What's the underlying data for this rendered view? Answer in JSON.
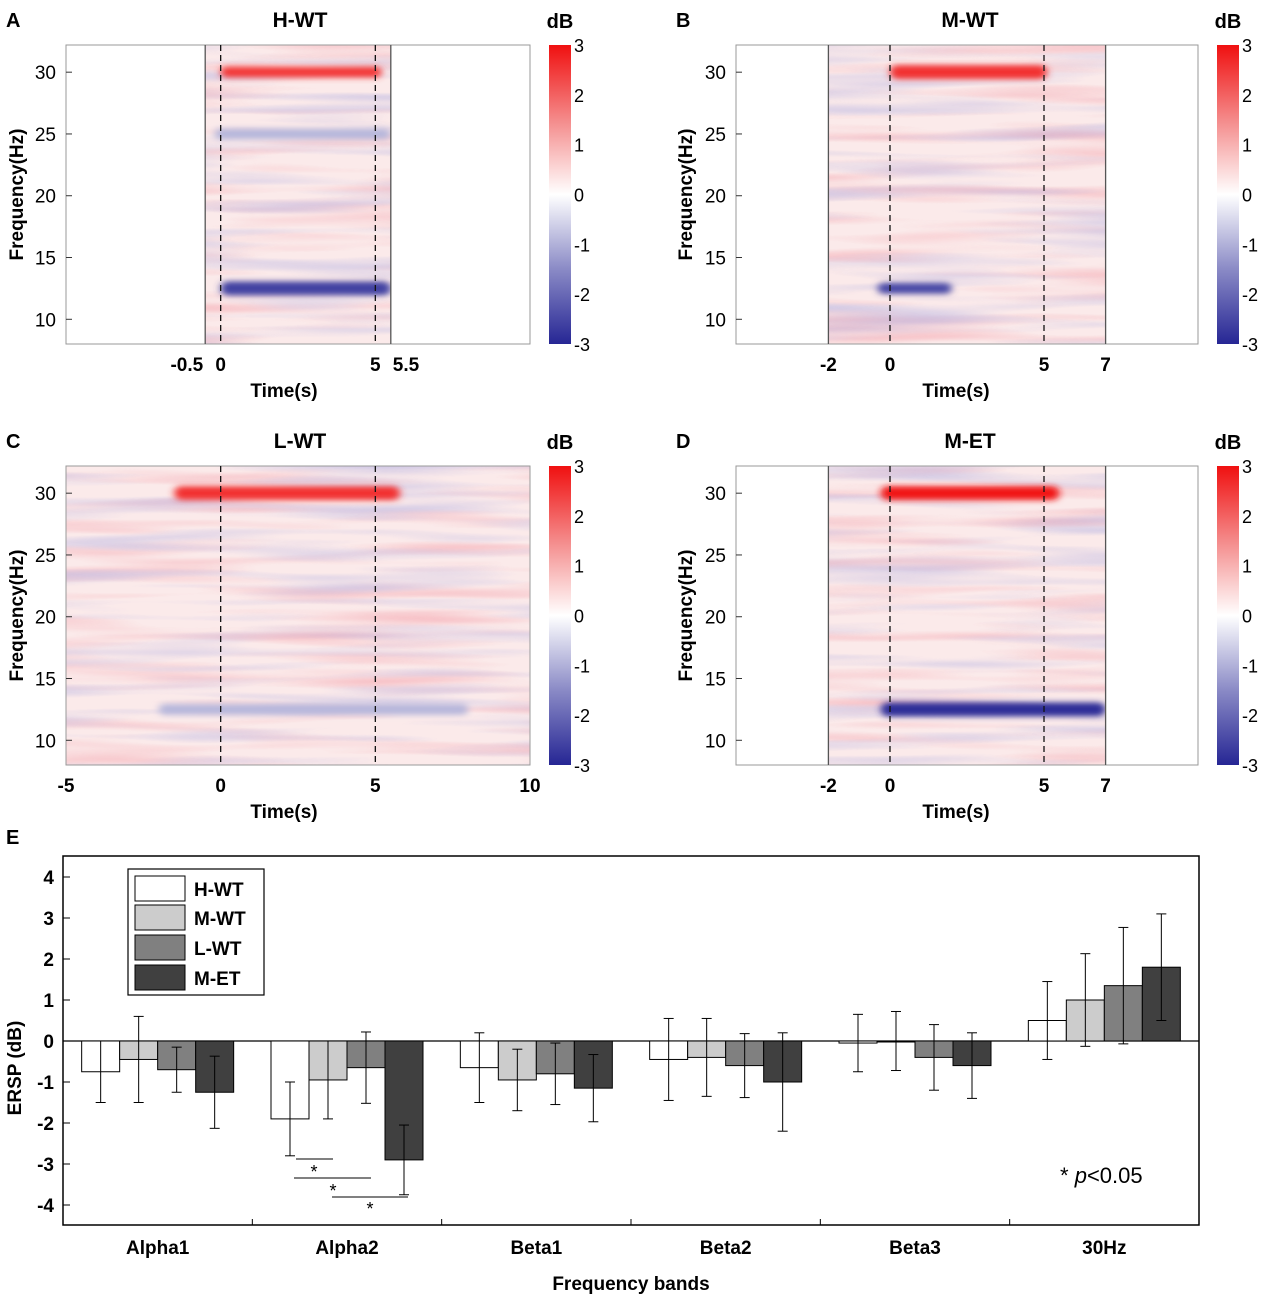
{
  "colorbar": {
    "unit": "dB",
    "ticks": [
      "3",
      "2",
      "1",
      "0",
      "-1",
      "-2",
      "-3"
    ]
  },
  "panels": [
    {
      "letter": "A",
      "title": "H-WT",
      "ylabel": "Frequency(Hz)",
      "xlabel": "Time(s)",
      "yticks": [
        "30",
        "25",
        "20",
        "15",
        "10"
      ],
      "xlim": [
        -5,
        10
      ],
      "xticks": [
        "-0.5",
        "0",
        "5",
        "5.5"
      ],
      "xtick_values": [
        -0.5,
        0,
        5,
        5.5
      ],
      "window": [
        -0.5,
        5.5
      ],
      "stimulus": [
        0,
        5
      ],
      "bands": [
        {
          "freq": 30,
          "db": 2.5,
          "start": 0,
          "end": 5.2
        },
        {
          "freq": 12.5,
          "db": -2.6,
          "start": 0,
          "end": 5.5
        },
        {
          "freq": 25,
          "db": -1.0,
          "start": -0.2,
          "end": 5.5
        }
      ]
    },
    {
      "letter": "B",
      "title": "M-WT",
      "ylabel": "Frequency(Hz)",
      "xlabel": "Time(s)",
      "yticks": [
        "30",
        "25",
        "20",
        "15",
        "10"
      ],
      "xlim": [
        -5,
        10
      ],
      "xticks": [
        "-2",
        "0",
        "5",
        "7"
      ],
      "xtick_values": [
        -2,
        0,
        5,
        7
      ],
      "window": [
        -2,
        7
      ],
      "stimulus": [
        0,
        5
      ],
      "bands": [
        {
          "freq": 30,
          "db": 2.6,
          "start": 0,
          "end": 5.1
        },
        {
          "freq": 12.5,
          "db": -2.5,
          "start": -0.4,
          "end": 2.0
        }
      ]
    },
    {
      "letter": "C",
      "title": "L-WT",
      "ylabel": "Frequency(Hz)",
      "xlabel": "Time(s)",
      "yticks": [
        "30",
        "25",
        "20",
        "15",
        "10"
      ],
      "xlim": [
        -5,
        10
      ],
      "xticks": [
        "-5",
        "0",
        "5",
        "10"
      ],
      "xtick_values": [
        -5,
        0,
        5,
        10
      ],
      "window": [
        -5,
        10
      ],
      "stimulus": [
        0,
        5
      ],
      "bands": [
        {
          "freq": 30,
          "db": 2.6,
          "start": -1.5,
          "end": 5.8
        },
        {
          "freq": 12.5,
          "db": -1.0,
          "start": -2,
          "end": 8
        }
      ]
    },
    {
      "letter": "D",
      "title": "M-ET",
      "ylabel": "Frequency(Hz)",
      "xlabel": "Time(s)",
      "yticks": [
        "30",
        "25",
        "20",
        "15",
        "10"
      ],
      "xlim": [
        -5,
        10
      ],
      "xticks": [
        "-2",
        "0",
        "5",
        "7"
      ],
      "xtick_values": [
        -2,
        0,
        5,
        7
      ],
      "window": [
        -2,
        7
      ],
      "stimulus": [
        0,
        5
      ],
      "bands": [
        {
          "freq": 30,
          "db": 2.9,
          "start": -0.3,
          "end": 5.5
        },
        {
          "freq": 12.5,
          "db": -2.9,
          "start": -0.3,
          "end": 7
        }
      ]
    }
  ],
  "chart_data": {
    "type": "bar",
    "panel_letter": "E",
    "title": "",
    "xlabel": "Frequency bands",
    "ylabel": "ERSP (dB)",
    "ylim": [
      -4.5,
      4.5
    ],
    "yticks": [
      "4",
      "3",
      "2",
      "1",
      "0",
      "-1",
      "-2",
      "-3",
      "-4"
    ],
    "categories": [
      "Alpha1",
      "Alpha2",
      "Beta1",
      "Beta2",
      "Beta3",
      "30Hz"
    ],
    "series": [
      {
        "name": "H-WT",
        "color": "#ffffff",
        "values": [
          -0.75,
          -1.9,
          -0.65,
          -0.45,
          -0.05,
          0.5
        ],
        "errors": [
          0.75,
          0.9,
          0.85,
          1.0,
          0.7,
          0.95
        ]
      },
      {
        "name": "M-WT",
        "color": "#cccccc",
        "values": [
          -0.45,
          -0.95,
          -0.95,
          -0.4,
          0.0,
          1.0
        ],
        "errors": [
          1.05,
          0.95,
          0.75,
          0.95,
          0.72,
          1.13
        ]
      },
      {
        "name": "L-WT",
        "color": "#808080",
        "values": [
          -0.7,
          -0.65,
          -0.8,
          -0.6,
          -0.4,
          1.35
        ],
        "errors": [
          0.55,
          0.87,
          0.75,
          0.78,
          0.8,
          1.42
        ]
      },
      {
        "name": "M-ET",
        "color": "#404040",
        "values": [
          -1.25,
          -2.9,
          -1.15,
          -1.0,
          -0.6,
          1.8
        ],
        "errors": [
          0.88,
          0.85,
          0.82,
          1.2,
          0.8,
          1.3
        ]
      }
    ],
    "significance": {
      "marker": "*",
      "note_prefix": "* ",
      "note_p": "p",
      "note_suffix": "<0.05"
    },
    "legend": "top-left"
  }
}
